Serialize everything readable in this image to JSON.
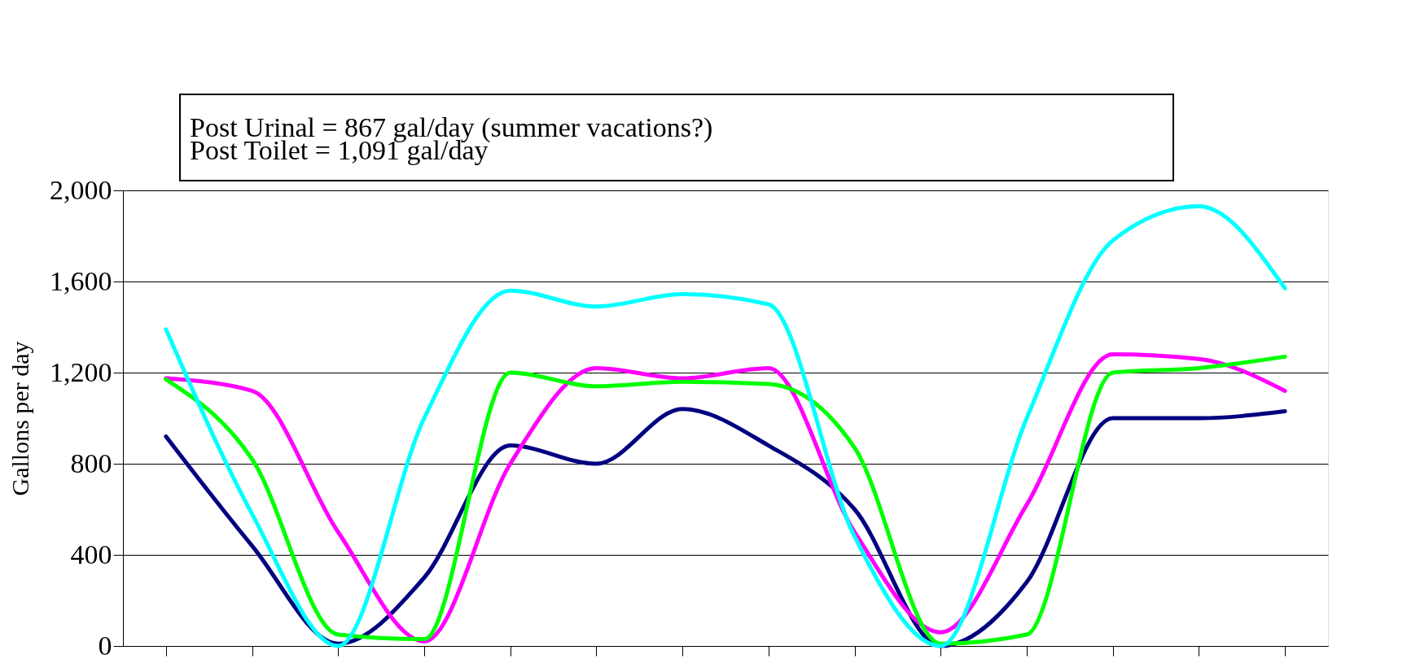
{
  "chart_data": {
    "type": "line",
    "ylabel": "Gallons per day",
    "annotations": [
      "Post Urinal = 867 gal/day (summer vacations?)",
      "Post Toilet = 1,091 gal/day"
    ],
    "categories": [
      null,
      null,
      null,
      null,
      null,
      null,
      null,
      null,
      null,
      null,
      null,
      null,
      null,
      null
    ],
    "series": [
      {
        "color": "#000080",
        "values": [
          920,
          440,
          10,
          300,
          880,
          800,
          1040,
          880,
          600,
          0,
          280,
          1000,
          1000,
          1030
        ]
      },
      {
        "color": "#ff00ff",
        "values": [
          1175,
          1120,
          500,
          20,
          800,
          1220,
          1175,
          1220,
          500,
          60,
          620,
          1280,
          1260,
          1120
        ]
      },
      {
        "color": "#00ff00",
        "values": [
          1170,
          820,
          50,
          30,
          1200,
          1140,
          1160,
          1150,
          870,
          10,
          50,
          1200,
          1220,
          1270
        ]
      },
      {
        "color": "#00ffff",
        "values": [
          1390,
          580,
          0,
          1000,
          1560,
          1490,
          1545,
          1500,
          480,
          0,
          1000,
          1780,
          1930,
          1570
        ]
      }
    ],
    "ylim": [
      0,
      2000
    ],
    "yticks": [
      0,
      400,
      800,
      {
        "value": 1200,
        "label": "1,200"
      },
      {
        "value": 1600,
        "label": "1,600"
      },
      {
        "value": 2000,
        "label": "2,000"
      }
    ],
    "grid": "y",
    "legend": false,
    "marker": "none",
    "line_style": "solid"
  }
}
